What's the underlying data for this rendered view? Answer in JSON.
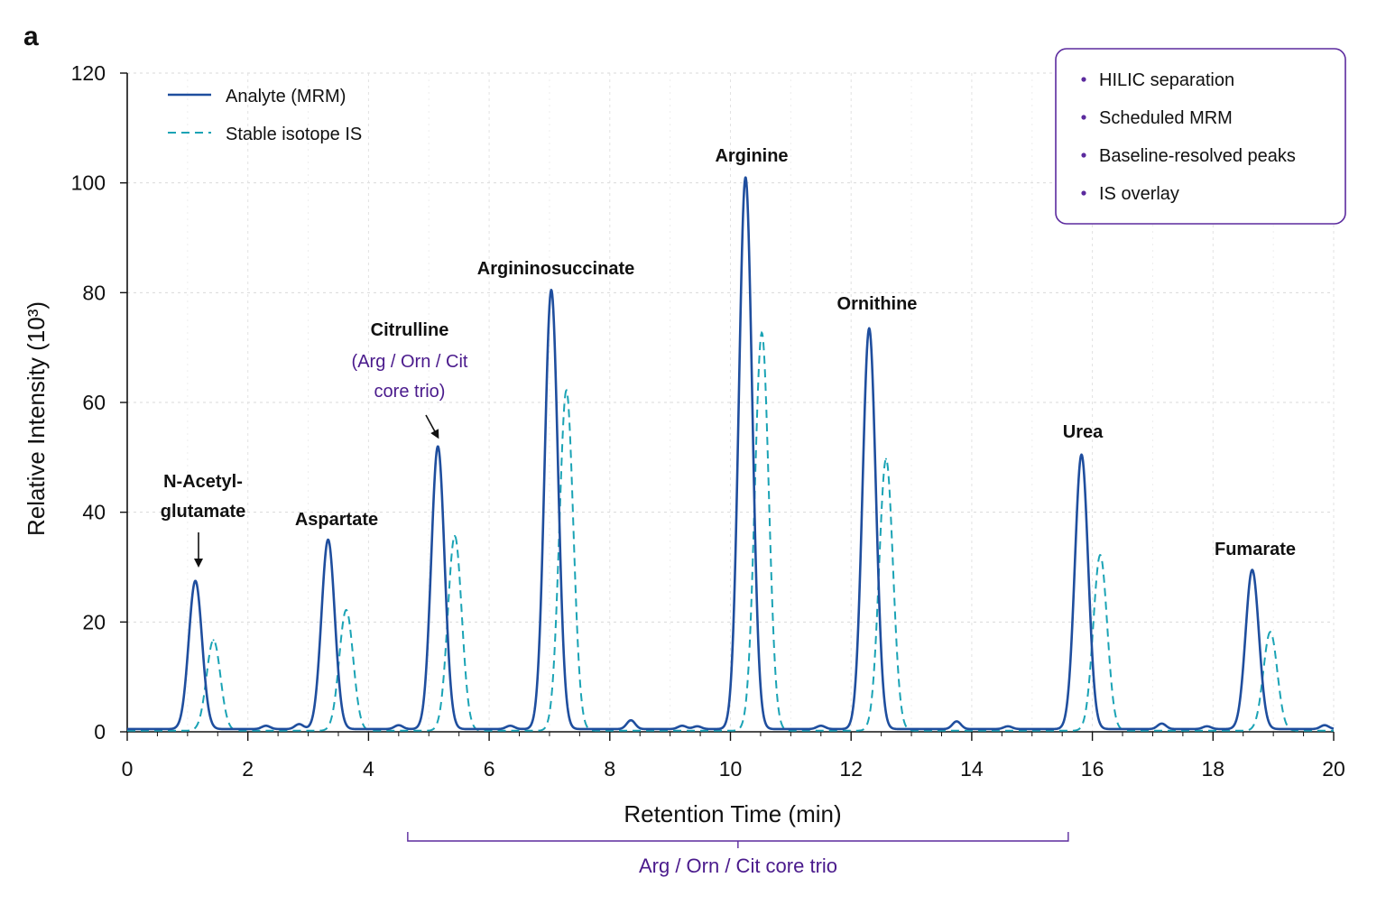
{
  "panel_label": "a",
  "chart_data": {
    "type": "line",
    "xlabel": "Retention Time (min)",
    "ylabel": "Relative Intensity (10³)",
    "xlim": [
      0,
      20
    ],
    "ylim": [
      0,
      120
    ],
    "x_ticks": [
      0,
      2,
      4,
      6,
      8,
      10,
      12,
      14,
      16,
      18,
      20
    ],
    "y_ticks": [
      0,
      20,
      40,
      60,
      80,
      100,
      120
    ],
    "grid": true,
    "legend_position": "top-left",
    "series": [
      {
        "name": "Analyte (MRM)",
        "color": "#1f4e9e",
        "style": "solid",
        "peaks": [
          {
            "label": "N-Acetyl-glutamate",
            "rt": 1.13,
            "height": 27
          },
          {
            "label": "Aspartate",
            "rt": 3.33,
            "height": 34.5
          },
          {
            "label": "Citrulline",
            "rt": 5.15,
            "height": 51.5
          },
          {
            "label": "Argininosuccinate",
            "rt": 7.03,
            "height": 80
          },
          {
            "label": "Arginine",
            "rt": 10.25,
            "height": 100.5
          },
          {
            "label": "Ornithine",
            "rt": 12.3,
            "height": 73
          },
          {
            "label": "Urea",
            "rt": 15.82,
            "height": 50
          },
          {
            "label": "Fumarate",
            "rt": 18.65,
            "height": 29
          }
        ]
      },
      {
        "name": "Stable isotope IS",
        "color": "#1aa3b5",
        "style": "dashed",
        "peaks": [
          {
            "rt": 1.43,
            "height": 16.5
          },
          {
            "rt": 3.63,
            "height": 22
          },
          {
            "rt": 5.43,
            "height": 35.5
          },
          {
            "rt": 7.28,
            "height": 62
          },
          {
            "rt": 10.52,
            "height": 72.5
          },
          {
            "rt": 12.58,
            "height": 49.5
          },
          {
            "rt": 16.13,
            "height": 32
          },
          {
            "rt": 18.95,
            "height": 18
          }
        ]
      }
    ],
    "annotations": {
      "peak_labels": [
        {
          "lines": [
            "N-Acetyl-",
            "glutamate"
          ],
          "arrow": true
        },
        {
          "lines": [
            "Aspartate"
          ]
        },
        {
          "lines": [
            "Citrulline"
          ],
          "note_lines": [
            "(Arg / Orn / Cit",
            "core trio)"
          ],
          "arrow": true
        },
        {
          "lines": [
            "Argininosuccinate"
          ]
        },
        {
          "lines": [
            "Arginine"
          ]
        },
        {
          "lines": [
            "Ornithine"
          ]
        },
        {
          "lines": [
            "Urea"
          ]
        },
        {
          "lines": [
            "Fumarate"
          ]
        }
      ],
      "callout_box": {
        "items": [
          "HILIC separation",
          "Scheduled MRM",
          "Baseline-resolved peaks",
          "IS overlay"
        ],
        "border_color": "#5b2a9e",
        "bullet_color": "#5b2a9e"
      },
      "bracket": {
        "label": "Arg / Orn / Cit core trio",
        "x_range": [
          4.65,
          15.6
        ],
        "color": "#5b2a9e"
      }
    }
  }
}
